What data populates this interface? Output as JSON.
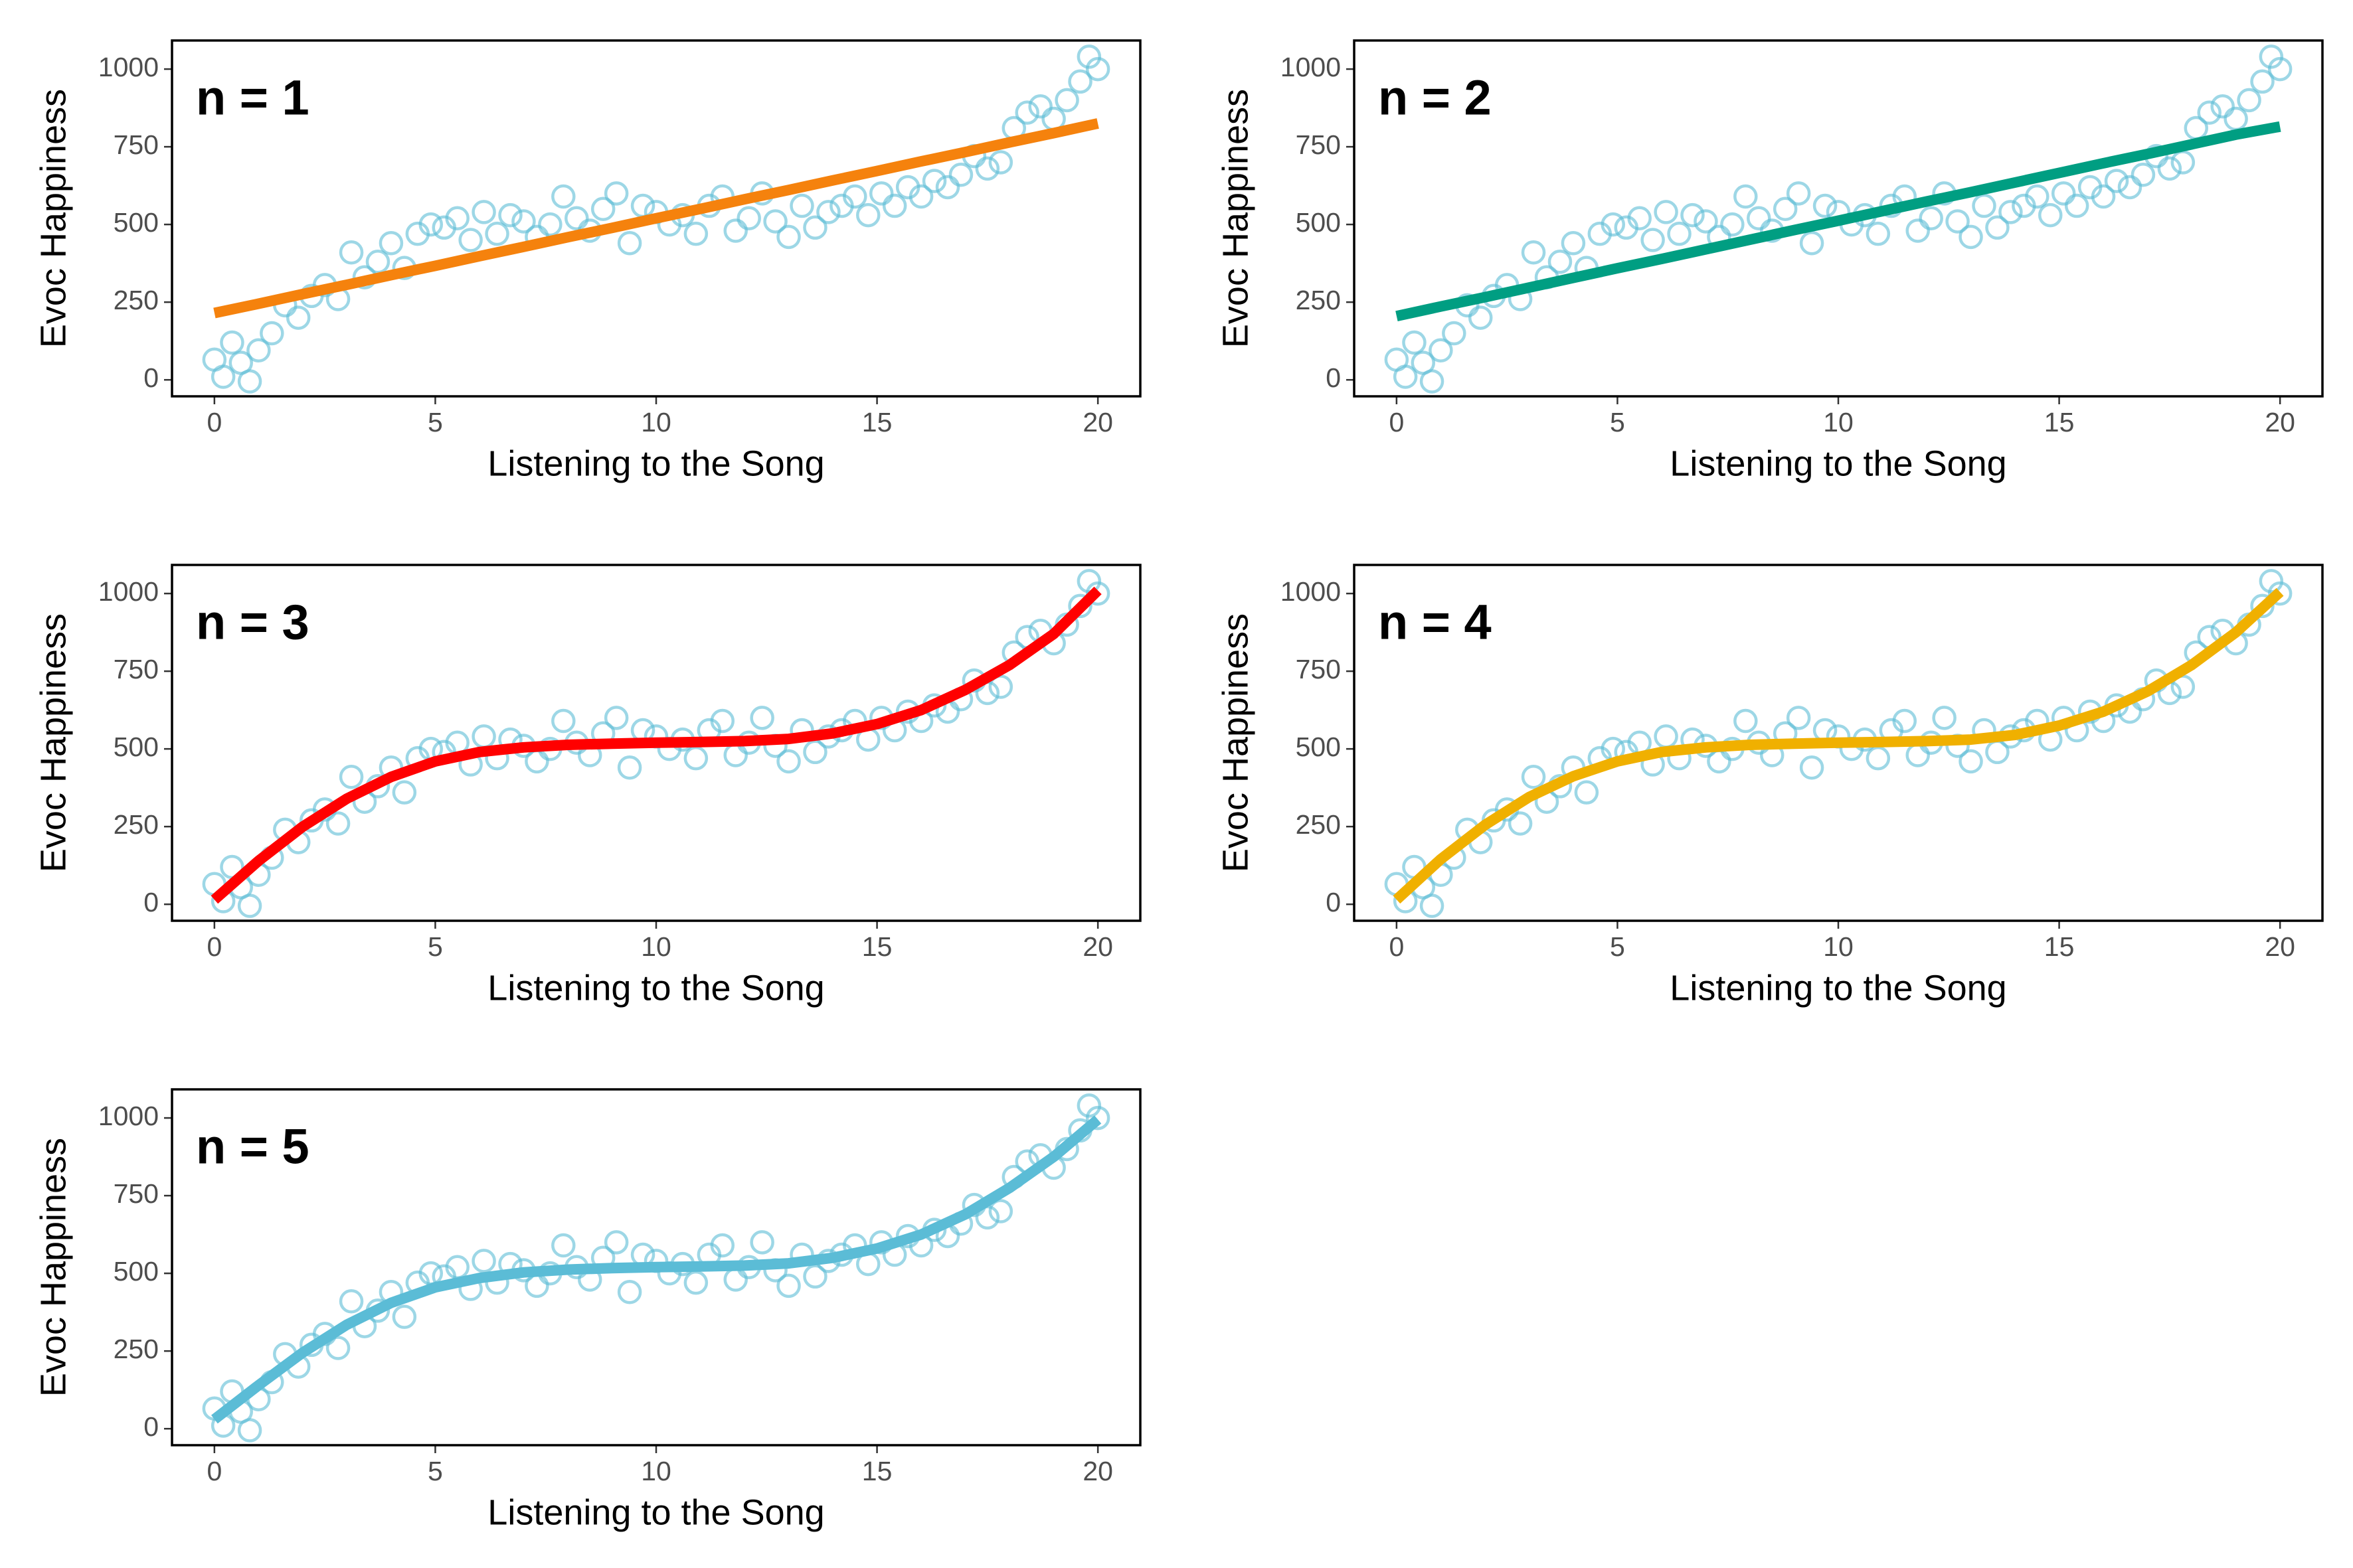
{
  "chart_data": [
    {
      "type": "scatter",
      "annotation": "n = 1",
      "x_label": "Listening to the Song",
      "y_label": "Evoc Happiness",
      "xlim": [
        -0.96,
        20.96
      ],
      "ylim": [
        -53,
        1092
      ],
      "xticks": [
        0,
        5,
        10,
        15,
        20
      ],
      "yticks": [
        0,
        250,
        500,
        750,
        1000
      ],
      "series": [
        {
          "style": "points",
          "color": "#5bbcd6",
          "x": [
            0,
            0.2,
            0.4,
            0.6,
            0.8,
            1,
            1.3,
            1.6,
            1.9,
            2.2,
            2.5,
            2.8,
            3.1,
            3.4,
            3.7,
            4,
            4.3,
            4.6,
            4.9,
            5.2,
            5.5,
            5.8,
            6.1,
            6.4,
            6.7,
            7,
            7.3,
            7.6,
            7.9,
            8.2,
            8.5,
            8.8,
            9.1,
            9.4,
            9.7,
            10,
            10.3,
            10.6,
            10.9,
            11.2,
            11.5,
            11.8,
            12.1,
            12.4,
            12.7,
            13,
            13.3,
            13.6,
            13.9,
            14.2,
            14.5,
            14.8,
            15.1,
            15.4,
            15.7,
            16,
            16.3,
            16.6,
            16.9,
            17.2,
            17.5,
            17.8,
            18.1,
            18.4,
            18.7,
            19,
            19.3,
            19.6,
            19.8,
            20
          ],
          "values": [
            65,
            10,
            120,
            55,
            -5,
            95,
            150,
            240,
            200,
            270,
            305,
            260,
            410,
            330,
            380,
            440,
            360,
            470,
            500,
            490,
            520,
            450,
            540,
            470,
            530,
            510,
            460,
            500,
            590,
            520,
            480,
            550,
            600,
            440,
            560,
            540,
            500,
            530,
            470,
            560,
            590,
            480,
            520,
            600,
            510,
            460,
            560,
            490,
            540,
            560,
            590,
            530,
            600,
            560,
            620,
            590,
            640,
            620,
            660,
            720,
            680,
            700,
            810,
            860,
            880,
            840,
            900,
            960,
            1040,
            1000
          ]
        },
        {
          "style": "line",
          "color": "#f5820d",
          "x": [
            0,
            1,
            2,
            3,
            4,
            5,
            6,
            7,
            8,
            9,
            10,
            11,
            12,
            13,
            14,
            15,
            16,
            17,
            18,
            19,
            20
          ],
          "values": [
            215,
            245,
            276,
            306,
            337,
            367,
            398,
            428,
            459,
            489,
            520,
            550,
            581,
            611,
            642,
            672,
            703,
            733,
            764,
            794,
            825
          ]
        }
      ]
    },
    {
      "type": "scatter",
      "annotation": "n = 2",
      "x_label": "Listening to the Song",
      "y_label": "Evoc Happiness",
      "xlim": [
        -0.96,
        20.96
      ],
      "ylim": [
        -53,
        1092
      ],
      "xticks": [
        0,
        5,
        10,
        15,
        20
      ],
      "yticks": [
        0,
        250,
        500,
        750,
        1000
      ],
      "series": [
        {
          "style": "points",
          "color": "#5bbcd6",
          "x": [
            0,
            0.2,
            0.4,
            0.6,
            0.8,
            1,
            1.3,
            1.6,
            1.9,
            2.2,
            2.5,
            2.8,
            3.1,
            3.4,
            3.7,
            4,
            4.3,
            4.6,
            4.9,
            5.2,
            5.5,
            5.8,
            6.1,
            6.4,
            6.7,
            7,
            7.3,
            7.6,
            7.9,
            8.2,
            8.5,
            8.8,
            9.1,
            9.4,
            9.7,
            10,
            10.3,
            10.6,
            10.9,
            11.2,
            11.5,
            11.8,
            12.1,
            12.4,
            12.7,
            13,
            13.3,
            13.6,
            13.9,
            14.2,
            14.5,
            14.8,
            15.1,
            15.4,
            15.7,
            16,
            16.3,
            16.6,
            16.9,
            17.2,
            17.5,
            17.8,
            18.1,
            18.4,
            18.7,
            19,
            19.3,
            19.6,
            19.8,
            20
          ],
          "values": [
            65,
            10,
            120,
            55,
            -5,
            95,
            150,
            240,
            200,
            270,
            305,
            260,
            410,
            330,
            380,
            440,
            360,
            470,
            500,
            490,
            520,
            450,
            540,
            470,
            530,
            510,
            460,
            500,
            590,
            520,
            480,
            550,
            600,
            440,
            560,
            540,
            500,
            530,
            470,
            560,
            590,
            480,
            520,
            600,
            510,
            460,
            560,
            490,
            540,
            560,
            590,
            530,
            600,
            560,
            620,
            590,
            640,
            620,
            660,
            720,
            680,
            700,
            810,
            860,
            880,
            840,
            900,
            960,
            1040,
            1000
          ]
        },
        {
          "style": "line",
          "color": "#009e82",
          "x": [
            0,
            1,
            2,
            3,
            4,
            5,
            6,
            7,
            8,
            9,
            10,
            11,
            12,
            13,
            14,
            15,
            16,
            17,
            18,
            19,
            20
          ],
          "values": [
            205,
            236,
            266,
            297,
            328,
            359,
            389,
            420,
            451,
            482,
            512,
            543,
            574,
            604,
            635,
            666,
            697,
            727,
            758,
            789,
            815
          ]
        }
      ]
    },
    {
      "type": "scatter",
      "annotation": "n = 3",
      "x_label": "Listening to the Song",
      "y_label": "Evoc Happiness",
      "xlim": [
        -0.96,
        20.96
      ],
      "ylim": [
        -53,
        1092
      ],
      "xticks": [
        0,
        5,
        10,
        15,
        20
      ],
      "yticks": [
        0,
        250,
        500,
        750,
        1000
      ],
      "series": [
        {
          "style": "points",
          "color": "#5bbcd6",
          "x": [
            0,
            0.2,
            0.4,
            0.6,
            0.8,
            1,
            1.3,
            1.6,
            1.9,
            2.2,
            2.5,
            2.8,
            3.1,
            3.4,
            3.7,
            4,
            4.3,
            4.6,
            4.9,
            5.2,
            5.5,
            5.8,
            6.1,
            6.4,
            6.7,
            7,
            7.3,
            7.6,
            7.9,
            8.2,
            8.5,
            8.8,
            9.1,
            9.4,
            9.7,
            10,
            10.3,
            10.6,
            10.9,
            11.2,
            11.5,
            11.8,
            12.1,
            12.4,
            12.7,
            13,
            13.3,
            13.6,
            13.9,
            14.2,
            14.5,
            14.8,
            15.1,
            15.4,
            15.7,
            16,
            16.3,
            16.6,
            16.9,
            17.2,
            17.5,
            17.8,
            18.1,
            18.4,
            18.7,
            19,
            19.3,
            19.6,
            19.8,
            20
          ],
          "values": [
            65,
            10,
            120,
            55,
            -5,
            95,
            150,
            240,
            200,
            270,
            305,
            260,
            410,
            330,
            380,
            440,
            360,
            470,
            500,
            490,
            520,
            450,
            540,
            470,
            530,
            510,
            460,
            500,
            590,
            520,
            480,
            550,
            600,
            440,
            560,
            540,
            500,
            530,
            470,
            560,
            590,
            480,
            520,
            600,
            510,
            460,
            560,
            490,
            540,
            560,
            590,
            530,
            600,
            560,
            620,
            590,
            640,
            620,
            660,
            720,
            680,
            700,
            810,
            860,
            880,
            840,
            900,
            960,
            1040,
            1000
          ]
        },
        {
          "style": "line",
          "color": "#ff0000",
          "x": [
            0,
            1,
            2,
            3,
            4,
            5,
            6,
            7,
            8,
            9,
            10,
            11,
            12,
            13,
            14,
            15,
            16,
            17,
            18,
            19,
            20
          ],
          "values": [
            15,
            140,
            250,
            340,
            410,
            460,
            490,
            505,
            513,
            517,
            520,
            522,
            525,
            532,
            550,
            580,
            625,
            690,
            770,
            870,
            1010
          ]
        }
      ]
    },
    {
      "type": "scatter",
      "annotation": "n = 4",
      "x_label": "Listening to the Song",
      "y_label": "Evoc Happiness",
      "xlim": [
        -0.96,
        20.96
      ],
      "ylim": [
        -53,
        1092
      ],
      "xticks": [
        0,
        5,
        10,
        15,
        20
      ],
      "yticks": [
        0,
        250,
        500,
        750,
        1000
      ],
      "series": [
        {
          "style": "points",
          "color": "#5bbcd6",
          "x": [
            0,
            0.2,
            0.4,
            0.6,
            0.8,
            1,
            1.3,
            1.6,
            1.9,
            2.2,
            2.5,
            2.8,
            3.1,
            3.4,
            3.7,
            4,
            4.3,
            4.6,
            4.9,
            5.2,
            5.5,
            5.8,
            6.1,
            6.4,
            6.7,
            7,
            7.3,
            7.6,
            7.9,
            8.2,
            8.5,
            8.8,
            9.1,
            9.4,
            9.7,
            10,
            10.3,
            10.6,
            10.9,
            11.2,
            11.5,
            11.8,
            12.1,
            12.4,
            12.7,
            13,
            13.3,
            13.6,
            13.9,
            14.2,
            14.5,
            14.8,
            15.1,
            15.4,
            15.7,
            16,
            16.3,
            16.6,
            16.9,
            17.2,
            17.5,
            17.8,
            18.1,
            18.4,
            18.7,
            19,
            19.3,
            19.6,
            19.8,
            20
          ],
          "values": [
            65,
            10,
            120,
            55,
            -5,
            95,
            150,
            240,
            200,
            270,
            305,
            260,
            410,
            330,
            380,
            440,
            360,
            470,
            500,
            490,
            520,
            450,
            540,
            470,
            530,
            510,
            460,
            500,
            590,
            520,
            480,
            550,
            600,
            440,
            560,
            540,
            500,
            530,
            470,
            560,
            590,
            480,
            520,
            600,
            510,
            460,
            560,
            490,
            540,
            560,
            590,
            530,
            600,
            560,
            620,
            590,
            640,
            620,
            660,
            720,
            680,
            700,
            810,
            860,
            880,
            840,
            900,
            960,
            1040,
            1000
          ]
        },
        {
          "style": "line",
          "color": "#f0b000",
          "x": [
            0,
            1,
            2,
            3,
            4,
            5,
            6,
            7,
            8,
            9,
            10,
            11,
            12,
            13,
            14,
            15,
            16,
            17,
            18,
            19,
            20
          ],
          "values": [
            15,
            145,
            255,
            345,
            412,
            460,
            490,
            505,
            513,
            517,
            520,
            522,
            525,
            530,
            545,
            575,
            620,
            685,
            770,
            875,
            1005
          ]
        }
      ]
    },
    {
      "type": "scatter",
      "annotation": "n = 5",
      "x_label": "Listening to the Song",
      "y_label": "Evoc Happiness",
      "xlim": [
        -0.96,
        20.96
      ],
      "ylim": [
        -53,
        1092
      ],
      "xticks": [
        0,
        5,
        10,
        15,
        20
      ],
      "yticks": [
        0,
        250,
        500,
        750,
        1000
      ],
      "series": [
        {
          "style": "points",
          "color": "#5bbcd6",
          "x": [
            0,
            0.2,
            0.4,
            0.6,
            0.8,
            1,
            1.3,
            1.6,
            1.9,
            2.2,
            2.5,
            2.8,
            3.1,
            3.4,
            3.7,
            4,
            4.3,
            4.6,
            4.9,
            5.2,
            5.5,
            5.8,
            6.1,
            6.4,
            6.7,
            7,
            7.3,
            7.6,
            7.9,
            8.2,
            8.5,
            8.8,
            9.1,
            9.4,
            9.7,
            10,
            10.3,
            10.6,
            10.9,
            11.2,
            11.5,
            11.8,
            12.1,
            12.4,
            12.7,
            13,
            13.3,
            13.6,
            13.9,
            14.2,
            14.5,
            14.8,
            15.1,
            15.4,
            15.7,
            16,
            16.3,
            16.6,
            16.9,
            17.2,
            17.5,
            17.8,
            18.1,
            18.4,
            18.7,
            19,
            19.3,
            19.6,
            19.8,
            20
          ],
          "values": [
            65,
            10,
            120,
            55,
            -5,
            95,
            150,
            240,
            200,
            270,
            305,
            260,
            410,
            330,
            380,
            440,
            360,
            470,
            500,
            490,
            520,
            450,
            540,
            470,
            530,
            510,
            460,
            500,
            590,
            520,
            480,
            550,
            600,
            440,
            560,
            540,
            500,
            530,
            470,
            560,
            590,
            480,
            520,
            600,
            510,
            460,
            560,
            490,
            540,
            560,
            590,
            530,
            600,
            560,
            620,
            590,
            640,
            620,
            660,
            720,
            680,
            700,
            810,
            860,
            880,
            840,
            900,
            960,
            1040,
            1000
          ]
        },
        {
          "style": "line",
          "color": "#5bbcd6",
          "x": [
            0,
            1,
            2,
            3,
            4,
            5,
            6,
            7,
            8,
            9,
            10,
            11,
            12,
            13,
            14,
            15,
            16,
            17,
            18,
            19,
            20
          ],
          "values": [
            30,
            140,
            245,
            335,
            405,
            455,
            485,
            503,
            512,
            517,
            520,
            522,
            525,
            532,
            550,
            580,
            625,
            690,
            775,
            875,
            995
          ]
        }
      ]
    }
  ]
}
